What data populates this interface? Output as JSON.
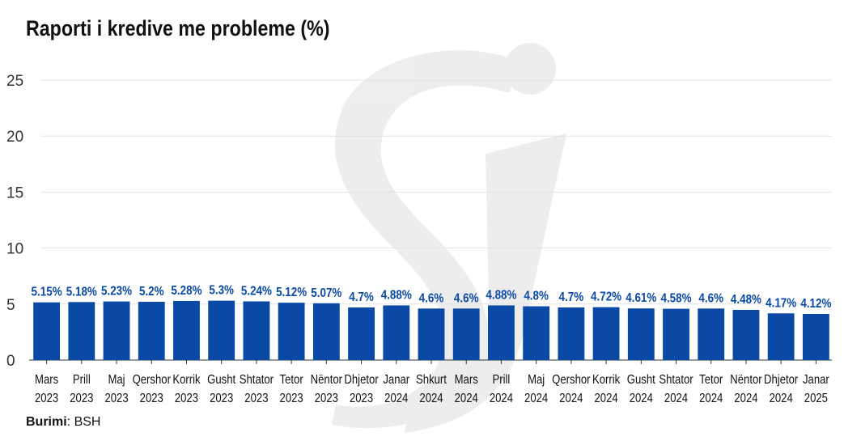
{
  "source": {
    "label": "Burimi",
    "value": "BSH"
  },
  "chart_data": {
    "type": "bar",
    "title": "Raporti i kredive me probleme (%)",
    "xlabel": "",
    "ylabel": "",
    "ylim": [
      0,
      25
    ],
    "yticks": [
      "0",
      "5",
      "10",
      "15",
      "20",
      "25"
    ],
    "grid": true,
    "bar_color": "#0a4aa6",
    "label_color": "#0a4aa6",
    "categories": [
      [
        "Mars",
        "2023"
      ],
      [
        "Prill",
        "2023"
      ],
      [
        "Maj",
        "2023"
      ],
      [
        "Qershor",
        "2023"
      ],
      [
        "Korrik",
        "2023"
      ],
      [
        "Gusht",
        "2023"
      ],
      [
        "Shtator",
        "2023"
      ],
      [
        "Tetor",
        "2023"
      ],
      [
        "Nëntor",
        "2023"
      ],
      [
        "Dhjetor",
        "2023"
      ],
      [
        "Janar",
        "2024"
      ],
      [
        "Shkurt",
        "2024"
      ],
      [
        "Mars",
        "2024"
      ],
      [
        "Prill",
        "2024"
      ],
      [
        "Maj",
        "2024"
      ],
      [
        "Qershor",
        "2024"
      ],
      [
        "Korrik",
        "2024"
      ],
      [
        "Gusht",
        "2024"
      ],
      [
        "Shtator",
        "2024"
      ],
      [
        "Tetor",
        "2024"
      ],
      [
        "Nëntor",
        "2024"
      ],
      [
        "Dhjetor",
        "2024"
      ],
      [
        "Janar",
        "2025"
      ]
    ],
    "values": [
      5.15,
      5.18,
      5.23,
      5.2,
      5.28,
      5.3,
      5.24,
      5.12,
      5.07,
      4.7,
      4.88,
      4.6,
      4.6,
      4.88,
      4.8,
      4.7,
      4.72,
      4.61,
      4.58,
      4.6,
      4.48,
      4.17,
      4.12
    ],
    "data_labels": [
      "5.15%",
      "5.18%",
      "5.23%",
      "5.2%",
      "5.28%",
      "5.3%",
      "5.24%",
      "5.12%",
      "5.07%",
      "4.7%",
      "4.88%",
      "4.6%",
      "4.6%",
      "4.88%",
      "4.8%",
      "4.7%",
      "4.72%",
      "4.61%",
      "4.58%",
      "4.6%",
      "4.48%",
      "4.17%",
      "4.12%"
    ]
  }
}
